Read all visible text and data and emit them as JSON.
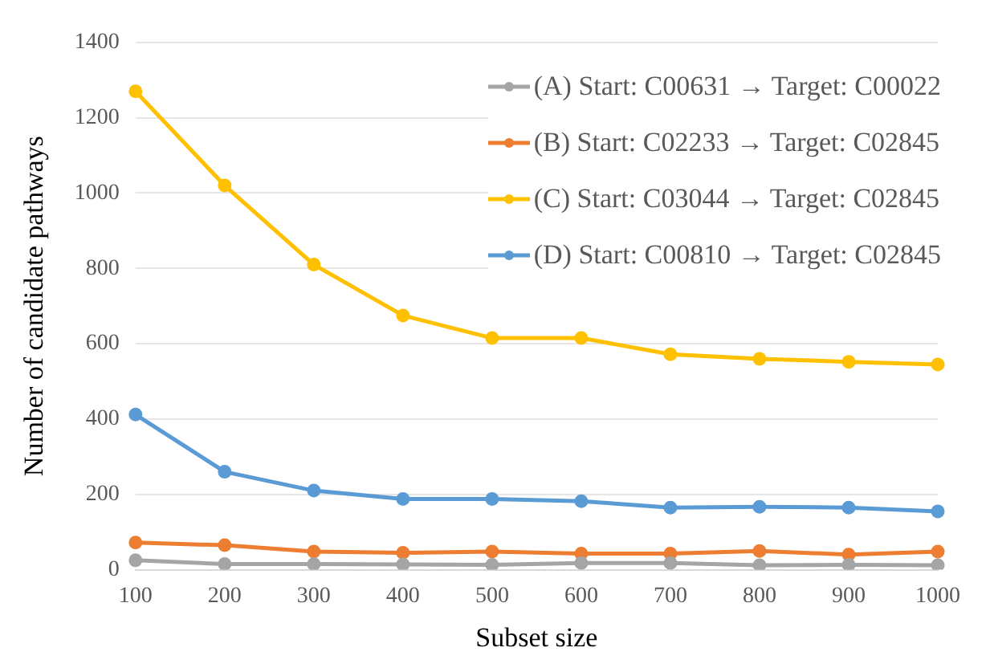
{
  "chart_data": {
    "type": "line",
    "xlabel": "Subset size",
    "ylabel": "Number of candidate pathways",
    "categories": [
      "100",
      "200",
      "300",
      "400",
      "500",
      "600",
      "700",
      "800",
      "900",
      "1000"
    ],
    "series": [
      {
        "name": "(A) Start: C00631 → Target: C00022",
        "color": "#a5a5a5",
        "values": [
          25,
          15,
          15,
          14,
          13,
          18,
          18,
          12,
          13,
          12
        ]
      },
      {
        "name": "(B) Start: C02233 → Target: C02845",
        "color": "#ed7d31",
        "values": [
          72,
          65,
          48,
          45,
          48,
          43,
          43,
          50,
          40,
          48
        ]
      },
      {
        "name": "(C) Start: C03044 → Target: C02845",
        "color": "#ffc000",
        "values": [
          1270,
          1020,
          810,
          675,
          615,
          615,
          572,
          560,
          552,
          545
        ]
      },
      {
        "name": "(D) Start: C00810 → Target: C02845",
        "color": "#5b9bd5",
        "values": [
          412,
          260,
          210,
          188,
          188,
          182,
          165,
          167,
          165,
          155
        ]
      }
    ],
    "ylim": [
      0,
      1400
    ],
    "yticks": [
      0,
      200,
      400,
      600,
      800,
      1000,
      1200,
      1400
    ],
    "grid": "y",
    "legend": "top right",
    "marker": "circle",
    "line_style": "solid"
  }
}
